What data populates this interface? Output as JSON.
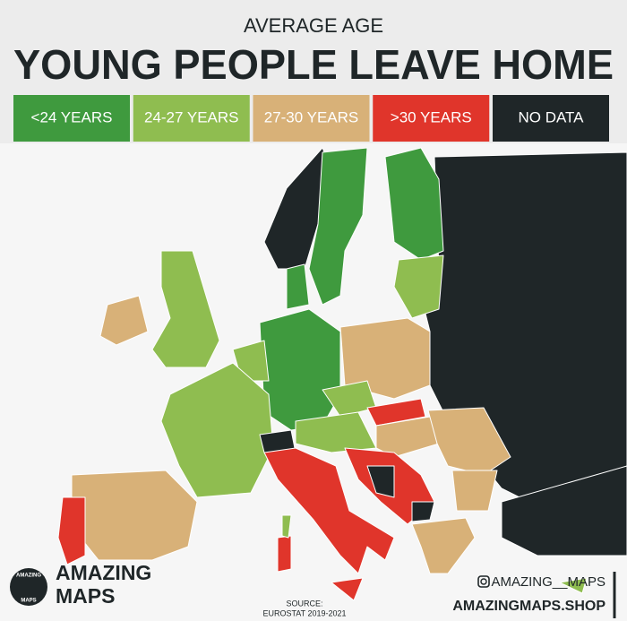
{
  "header": {
    "subtitle": "AVERAGE AGE",
    "title": "YOUNG PEOPLE LEAVE HOME"
  },
  "legend": [
    {
      "label": "<24 YEARS",
      "color": "#3f9a3e"
    },
    {
      "label": "24-27 YEARS",
      "color": "#8fbd50"
    },
    {
      "label": "27-30 YEARS",
      "color": "#d8b178"
    },
    {
      "label": ">30 YEARS",
      "color": "#e0352b"
    },
    {
      "label": "NO DATA",
      "color": "#1f2628"
    }
  ],
  "logo": {
    "line1": "AMAZING",
    "line2": "MAPS",
    "badge1": "AMAZING",
    "badge2": "MAPS"
  },
  "source": {
    "label": "SOURCE:",
    "text": "EUROSTAT 2019-2021"
  },
  "social": {
    "handle": "AMAZING__MAPS",
    "site": "AMAZINGMAPS.SHOP"
  }
}
